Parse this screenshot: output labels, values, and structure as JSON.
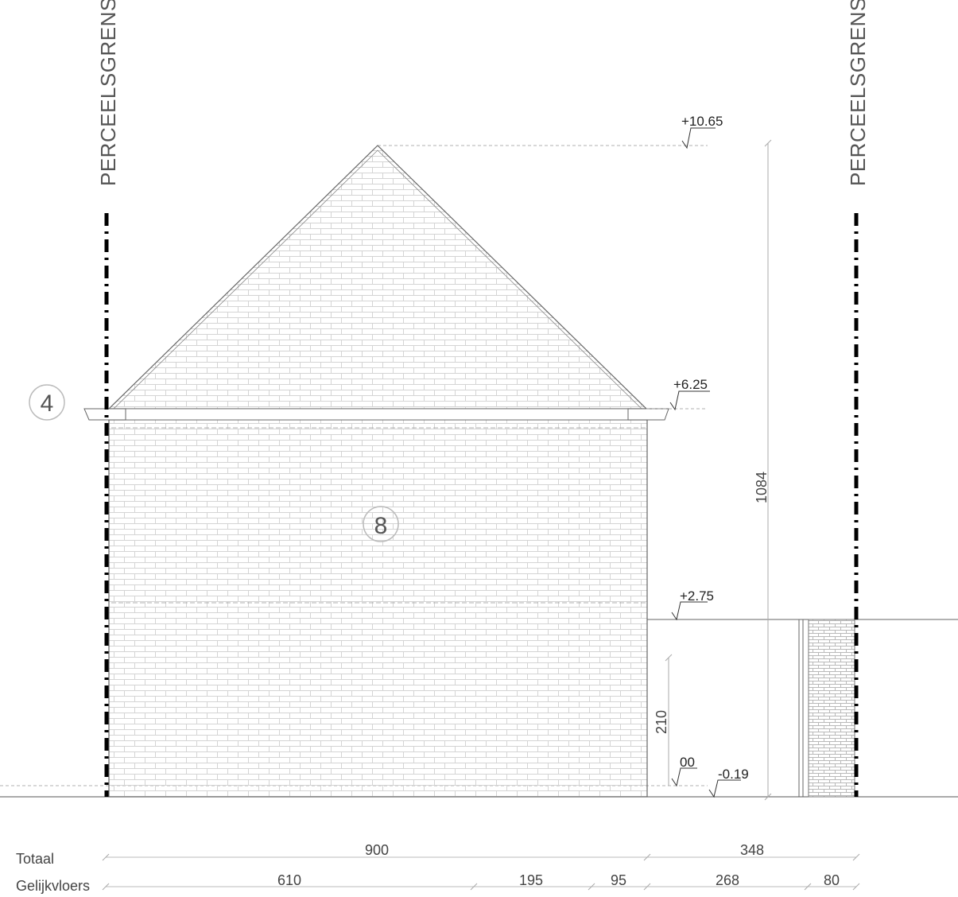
{
  "plot_boundary": {
    "left_label": "PERCEELSGRENS",
    "right_label": "PERCEELSGRENS"
  },
  "tags": {
    "left_tag": "4",
    "wall_tag": "8"
  },
  "levels": {
    "ridge": "+10.65",
    "eave": "+6.25",
    "floor_1": "+2.75",
    "ground": "00",
    "terrain": "-0.19"
  },
  "vertical_dims": {
    "total_height": "1084",
    "gate_height": "210"
  },
  "dimension_rows": {
    "totaal": {
      "label": "Totaal",
      "values": [
        "900",
        "348"
      ]
    },
    "gelijkvloers": {
      "label": "Gelijkvloers",
      "values": [
        "610",
        "195",
        "95",
        "268",
        "80"
      ]
    }
  },
  "colors": {
    "line": "#555555",
    "brick_line": "#d2d2d2",
    "boundary": "#000000"
  }
}
